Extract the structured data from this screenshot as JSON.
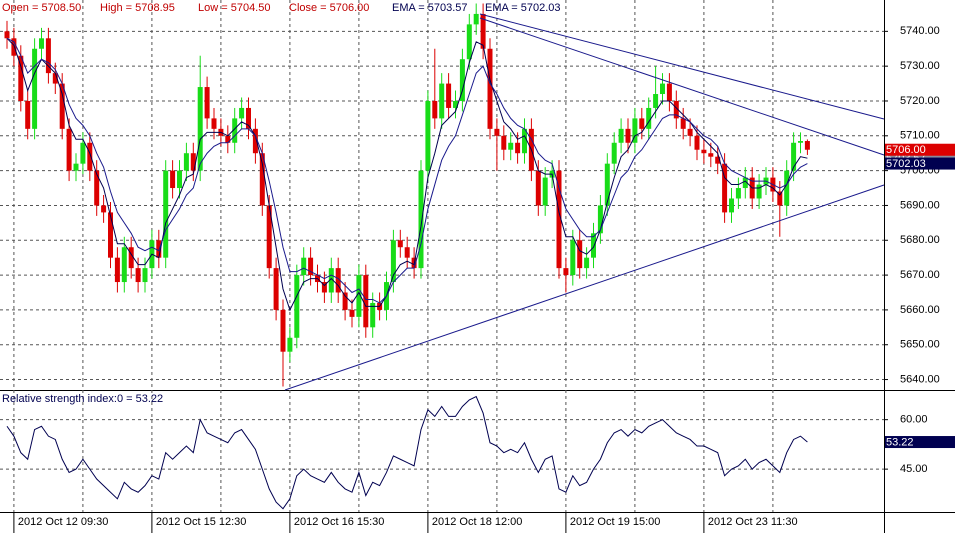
{
  "chart_data": [
    {
      "type": "candlestick",
      "categories": [
        null,
        "2012 Oct 12 09:30",
        null,
        null,
        null,
        null,
        null,
        null,
        null,
        null,
        null,
        null,
        null,
        null,
        null,
        null,
        null,
        null,
        null,
        null,
        null,
        "2012 Oct 15 12:30",
        null,
        null,
        null,
        null,
        null,
        null,
        null,
        null,
        null,
        null,
        null,
        null,
        null,
        null,
        null,
        null,
        null,
        null,
        null,
        "2012 Oct 16 15:30",
        null,
        null,
        null,
        null,
        null,
        null,
        null,
        null,
        null,
        null,
        null,
        null,
        null,
        null,
        null,
        null,
        null,
        null,
        null,
        "2012 Oct 18 12:00",
        null,
        null,
        null,
        null,
        null,
        null,
        null,
        null,
        null,
        null,
        null,
        null,
        null,
        null,
        null,
        null,
        null,
        null,
        null,
        "2012 Oct 19 15:00",
        null,
        null,
        null,
        null,
        null,
        null,
        null,
        null,
        null,
        null,
        null,
        null,
        null,
        null,
        null,
        null,
        null,
        null,
        null,
        "2012 Oct 23 11:30",
        null,
        null,
        null,
        null,
        null,
        null,
        null,
        null,
        null,
        null,
        null,
        null,
        null,
        null,
        null
      ],
      "open": [
        5740,
        5738,
        5733,
        5720,
        5712,
        5735,
        5738,
        5728,
        5725,
        5712,
        5700,
        5702,
        5708,
        5700,
        5690,
        5688,
        5675,
        5668,
        5678,
        5672,
        5668,
        5672,
        5680,
        5675,
        5700,
        5695,
        5700,
        5705,
        5700,
        5724,
        5715,
        5712,
        5710,
        5708,
        5715,
        5718,
        5712,
        5705,
        5690,
        5672,
        5660,
        5648,
        5652,
        5670,
        5675,
        5670,
        5668,
        5665,
        5672,
        5665,
        5660,
        5658,
        5670,
        5655,
        5662,
        5660,
        5668,
        5680,
        5678,
        5675,
        5672,
        5700,
        5720,
        5715,
        5725,
        5718,
        5720,
        5732,
        5742,
        5745,
        5735,
        5712,
        5710,
        5706,
        5708,
        5705,
        5712,
        5700,
        5690,
        5698,
        5700,
        5672,
        5670,
        5680,
        5672,
        5675,
        5682,
        5690,
        5702,
        5708,
        5712,
        5708,
        5715,
        5712,
        5718,
        5722,
        5725,
        5720,
        5715,
        5712,
        5710,
        5706,
        5705,
        5704,
        5702,
        5688,
        5692,
        5695,
        5698,
        5692,
        5696,
        5698,
        5694,
        5690,
        5700,
        5708,
        5708.5
      ],
      "high": [
        5743,
        5741,
        5736,
        5723,
        5738,
        5741,
        5741,
        5731,
        5728,
        5715,
        5705,
        5711,
        5711,
        5703,
        5693,
        5691,
        5678,
        5681,
        5681,
        5675,
        5675,
        5683,
        5683,
        5703,
        5703,
        5703,
        5708,
        5708,
        5733,
        5727,
        5718,
        5715,
        5713,
        5718,
        5721,
        5721,
        5715,
        5708,
        5693,
        5675,
        5663,
        5655,
        5673,
        5678,
        5678,
        5673,
        5671,
        5675,
        5675,
        5668,
        5663,
        5673,
        5673,
        5665,
        5665,
        5671,
        5683,
        5683,
        5681,
        5678,
        5703,
        5723,
        5735,
        5728,
        5728,
        5723,
        5735,
        5745,
        5748,
        5748,
        5738,
        5715,
        5713,
        5711,
        5711,
        5715,
        5715,
        5703,
        5701,
        5703,
        5703,
        5675,
        5683,
        5683,
        5678,
        5685,
        5693,
        5705,
        5711,
        5715,
        5715,
        5718,
        5718,
        5721,
        5730,
        5728,
        5728,
        5723,
        5718,
        5715,
        5713,
        5709,
        5708,
        5707,
        5705,
        5695,
        5698,
        5701,
        5701,
        5699,
        5701,
        5701,
        5697,
        5703,
        5711,
        5711,
        5708.95
      ],
      "low": [
        5735,
        5730,
        5717,
        5709,
        5709,
        5732,
        5725,
        5722,
        5709,
        5697,
        5697,
        5699,
        5697,
        5687,
        5685,
        5672,
        5665,
        5665,
        5669,
        5665,
        5665,
        5669,
        5672,
        5672,
        5692,
        5692,
        5697,
        5697,
        5697,
        5712,
        5709,
        5707,
        5705,
        5705,
        5712,
        5709,
        5702,
        5687,
        5669,
        5657,
        5638,
        5645,
        5649,
        5667,
        5667,
        5665,
        5662,
        5662,
        5662,
        5657,
        5655,
        5655,
        5652,
        5652,
        5657,
        5657,
        5665,
        5675,
        5672,
        5669,
        5669,
        5697,
        5712,
        5712,
        5715,
        5715,
        5717,
        5729,
        5739,
        5732,
        5709,
        5700,
        5703,
        5703,
        5702,
        5702,
        5697,
        5687,
        5687,
        5695,
        5669,
        5665,
        5667,
        5669,
        5669,
        5672,
        5679,
        5687,
        5699,
        5705,
        5705,
        5705,
        5709,
        5709,
        5715,
        5719,
        5717,
        5712,
        5709,
        5707,
        5703,
        5702,
        5701,
        5699,
        5685,
        5685,
        5689,
        5692,
        5689,
        5689,
        5693,
        5691,
        5681,
        5687,
        5697,
        5705,
        5704.5
      ],
      "close": [
        5738,
        5733,
        5720,
        5712,
        5735,
        5738,
        5728,
        5725,
        5712,
        5700,
        5702,
        5708,
        5700,
        5690,
        5688,
        5675,
        5668,
        5678,
        5672,
        5668,
        5672,
        5680,
        5675,
        5700,
        5695,
        5700,
        5705,
        5700,
        5724,
        5715,
        5712,
        5710,
        5708,
        5715,
        5718,
        5712,
        5705,
        5690,
        5672,
        5660,
        5648,
        5652,
        5670,
        5675,
        5670,
        5668,
        5665,
        5672,
        5665,
        5660,
        5658,
        5670,
        5655,
        5662,
        5660,
        5668,
        5680,
        5678,
        5675,
        5672,
        5700,
        5720,
        5715,
        5725,
        5718,
        5720,
        5732,
        5742,
        5745,
        5735,
        5712,
        5710,
        5706,
        5708,
        5705,
        5712,
        5700,
        5690,
        5698,
        5700,
        5672,
        5670,
        5680,
        5672,
        5675,
        5682,
        5690,
        5702,
        5708,
        5712,
        5708,
        5715,
        5712,
        5718,
        5722,
        5725,
        5720,
        5715,
        5712,
        5710,
        5706,
        5705,
        5704,
        5702,
        5688,
        5692,
        5695,
        5698,
        5692,
        5696,
        5698,
        5694,
        5690,
        5700,
        5708,
        5708.5,
        5706
      ],
      "up_color": "#18dc18",
      "down_color": "#dc0000",
      "ohlc_labels": [
        "Open = 5708.50",
        "High = 5708.95",
        "Low = 5704.50",
        "Close = 5706.00"
      ],
      "close_label": "5706.00",
      "series": [
        {
          "name": "EMA = 5703.57",
          "color": "#000050",
          "last_label": "5703.57",
          "values": [
            5738,
            5736,
            5730,
            5723,
            5728,
            5732,
            5730,
            5728,
            5722,
            5713,
            5709,
            5709,
            5705,
            5699,
            5695,
            5687,
            5679,
            5679,
            5676,
            5673,
            5673,
            5676,
            5675,
            5685,
            5689,
            5693,
            5698,
            5699,
            5709,
            5711,
            5711,
            5711,
            5710,
            5712,
            5714,
            5713,
            5710,
            5702,
            5690,
            5678,
            5666,
            5660,
            5664,
            5668,
            5669,
            5669,
            5667,
            5669,
            5667,
            5664,
            5662,
            5665,
            5661,
            5661,
            5661,
            5664,
            5670,
            5673,
            5674,
            5673,
            5684,
            5698,
            5705,
            5713,
            5715,
            5717,
            5723,
            5731,
            5737,
            5736,
            5726,
            5720,
            5714,
            5712,
            5709,
            5710,
            5706,
            5700,
            5699,
            5699,
            5688,
            5681,
            5681,
            5677,
            5676,
            5678,
            5683,
            5691,
            5698,
            5704,
            5706,
            5710,
            5711,
            5714,
            5717,
            5720,
            5720,
            5718,
            5716,
            5714,
            5711,
            5709,
            5707,
            5705,
            5698,
            5696,
            5696,
            5697,
            5695,
            5695,
            5696,
            5695,
            5693,
            5696,
            5701,
            5704,
            5703.57
          ]
        },
        {
          "name": "EMA = 5702.03",
          "color": "#1a1a8c",
          "last_label": "5702.03",
          "values": [
            5738,
            5737,
            5733,
            5728,
            5730,
            5732,
            5731,
            5729,
            5725,
            5719,
            5715,
            5713,
            5710,
            5705,
            5701,
            5694,
            5688,
            5685,
            5682,
            5678,
            5677,
            5678,
            5677,
            5683,
            5686,
            5689,
            5693,
            5695,
            5702,
            5705,
            5707,
            5708,
            5708,
            5710,
            5712,
            5712,
            5710,
            5705,
            5697,
            5688,
            5678,
            5671,
            5671,
            5672,
            5671,
            5670,
            5669,
            5670,
            5669,
            5667,
            5665,
            5666,
            5663,
            5663,
            5662,
            5664,
            5668,
            5670,
            5672,
            5672,
            5679,
            5689,
            5696,
            5703,
            5707,
            5710,
            5716,
            5722,
            5728,
            5730,
            5725,
            5722,
            5718,
            5715,
            5713,
            5712,
            5709,
            5705,
            5703,
            5702,
            5695,
            5689,
            5686,
            5683,
            5681,
            5681,
            5683,
            5688,
            5693,
            5698,
            5700,
            5704,
            5706,
            5709,
            5712,
            5715,
            5716,
            5716,
            5715,
            5714,
            5712,
            5710,
            5709,
            5707,
            5702,
            5700,
            5699,
            5698,
            5697,
            5697,
            5697,
            5696,
            5695,
            5696,
            5699,
            5701,
            5702.03
          ]
        }
      ],
      "ylim": [
        5637,
        5749
      ],
      "yticks": [
        {
          "value": 5640,
          "label": "5640.00"
        },
        {
          "value": 5650,
          "label": "5650.00"
        },
        {
          "value": 5660,
          "label": "5660.00"
        },
        {
          "value": 5670,
          "label": "5670.00"
        },
        {
          "value": 5680,
          "label": "5680.00"
        },
        {
          "value": 5690,
          "label": "5690.00"
        },
        {
          "value": 5700,
          "label": "5700.00"
        },
        {
          "value": 5710,
          "label": "5710.00"
        },
        {
          "value": 5720,
          "label": "5720.00"
        },
        {
          "value": 5730,
          "label": "5730.00"
        },
        {
          "value": 5740,
          "label": "5740.00"
        }
      ],
      "grid": true
    },
    {
      "type": "line",
      "title": "Relative strength index:0 = 53.22",
      "color": "#000050",
      "last_label": "53.22",
      "values": [
        58,
        55,
        50,
        48,
        57,
        58,
        55,
        54,
        48,
        44,
        45,
        48,
        45,
        42,
        40,
        38,
        36,
        41,
        39,
        38,
        40,
        43,
        42,
        50,
        48,
        50,
        52,
        50,
        60,
        56,
        55,
        54,
        53,
        56,
        57,
        54,
        51,
        45,
        39,
        35,
        33,
        36,
        43,
        45,
        43,
        42,
        41,
        44,
        41,
        39,
        38,
        44,
        37,
        41,
        40,
        44,
        49,
        48,
        47,
        46,
        57,
        63,
        61,
        64,
        61,
        61,
        64,
        66,
        67,
        62,
        53,
        52,
        50,
        51,
        50,
        53,
        48,
        44,
        48,
        49,
        39,
        38,
        43,
        40,
        41,
        45,
        48,
        53,
        56,
        57,
        55,
        57,
        56,
        58,
        59,
        60,
        58,
        56,
        55,
        54,
        52,
        52,
        51,
        50,
        43,
        45,
        46,
        48,
        45,
        47,
        48,
        46,
        44,
        50,
        54,
        55,
        53.22
      ],
      "ylim": [
        32,
        69
      ],
      "yticks": [
        {
          "value": 45,
          "label": "45.00"
        },
        {
          "value": 60,
          "label": "60.00"
        }
      ],
      "grid": true
    }
  ]
}
